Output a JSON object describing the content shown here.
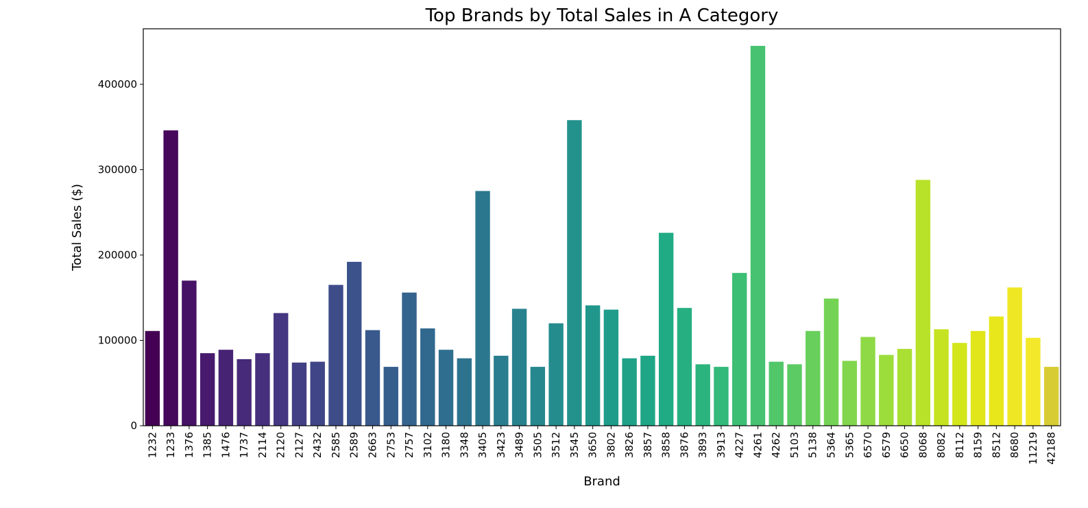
{
  "chart_data": {
    "type": "bar",
    "title": "Top Brands by Total Sales in A Category",
    "xlabel": "Brand",
    "ylabel": "Total Sales ($)",
    "ylim": [
      0,
      465000
    ],
    "yticks": [
      0,
      100000,
      200000,
      300000,
      400000
    ],
    "ytick_labels": [
      "0",
      "100000",
      "200000",
      "300000",
      "400000"
    ],
    "grid": false,
    "legend": "none",
    "palette": "viridis",
    "categories": [
      "1232",
      "1233",
      "1376",
      "1385",
      "1476",
      "1737",
      "2114",
      "2120",
      "2127",
      "2432",
      "2585",
      "2589",
      "2663",
      "2753",
      "2757",
      "3102",
      "3180",
      "3348",
      "3405",
      "3423",
      "3489",
      "3505",
      "3512",
      "3545",
      "3650",
      "3802",
      "3826",
      "3857",
      "3858",
      "3876",
      "3893",
      "3913",
      "4227",
      "4261",
      "4262",
      "5103",
      "5138",
      "5364",
      "5365",
      "6570",
      "6579",
      "6650",
      "8068",
      "8082",
      "8112",
      "8159",
      "8512",
      "8680",
      "11219",
      "42188"
    ],
    "values": [
      111000,
      346000,
      170000,
      85000,
      89000,
      78000,
      85000,
      132000,
      74000,
      75000,
      165000,
      192000,
      112000,
      69000,
      156000,
      114000,
      89000,
      79000,
      275000,
      82000,
      137000,
      69000,
      120000,
      358000,
      141000,
      136000,
      79000,
      82000,
      226000,
      138000,
      72000,
      69000,
      179000,
      445000,
      75000,
      72000,
      111000,
      149000,
      76000,
      104000,
      83000,
      90000,
      288000,
      113000,
      97000,
      111000,
      128000,
      162000,
      103000,
      69000
    ],
    "colors": [
      "#440154",
      "#45085b",
      "#461265",
      "#471a6d",
      "#472374",
      "#472a79",
      "#46307e",
      "#453781",
      "#423f85",
      "#404588",
      "#3e4c8a",
      "#3b528b",
      "#39588c",
      "#365e8d",
      "#34638d",
      "#31688e",
      "#2f6e8e",
      "#2d738e",
      "#2b788e",
      "#297d8e",
      "#27828e",
      "#26878e",
      "#248c8d",
      "#23928d",
      "#21978c",
      "#1f9c8a",
      "#1fa188",
      "#1fa687",
      "#21ab84",
      "#26b081",
      "#2bb47e",
      "#33b97a",
      "#3cbe75",
      "#46c270",
      "#51c76a",
      "#5ccb63",
      "#68cf5c",
      "#74d355",
      "#81d64d",
      "#8ed945",
      "#9cdd3c",
      "#aadf33",
      "#b8e22a",
      "#c6e321",
      "#d3e51b",
      "#e0e619",
      "#e8e71c",
      "#eee724",
      "#f3e82a",
      "#d8cc34"
    ]
  }
}
